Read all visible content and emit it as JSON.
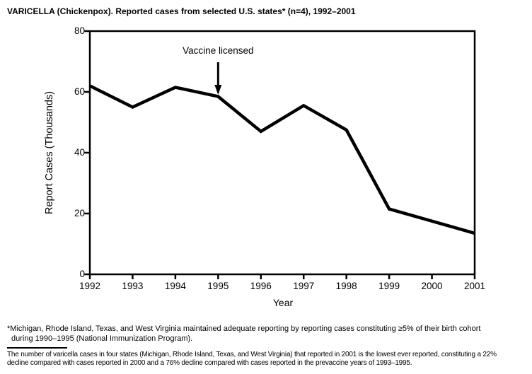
{
  "title": "VARICELLA (Chickenpox). Reported cases from selected U.S. states* (n=4), 1992–2001",
  "chart_data": {
    "type": "line",
    "title": "VARICELLA (Chickenpox). Reported cases from selected U.S. states* (n=4), 1992–2001",
    "x": [
      1992,
      1993,
      1994,
      1995,
      1996,
      1997,
      1998,
      1999,
      2000,
      2001
    ],
    "values": [
      62,
      55,
      61.5,
      58.5,
      47,
      55.5,
      47.5,
      21.5,
      17.5,
      13.5
    ],
    "series_name": "Reported varicella cases (thousands)",
    "xlabel": "Year",
    "ylabel": "Report Cases (Thousands)",
    "xlim": [
      1992,
      2001
    ],
    "ylim": [
      0,
      80
    ],
    "yticks": [
      0,
      20,
      40,
      60,
      80
    ],
    "xticks": [
      1992,
      1993,
      1994,
      1995,
      1996,
      1997,
      1998,
      1999,
      2000,
      2001
    ],
    "grid": false,
    "legend_position": "none",
    "line_color": "#000000",
    "frame_color": "#000000",
    "annotation": {
      "text": "Vaccine licensed",
      "x": 1995,
      "arrow": "down"
    }
  },
  "footnotes": {
    "footnote1_line1": "*Michigan, Rhode Island, Texas, and West Virginia maintained adequate reporting by reporting cases constituting ≥5% of their birth cohort",
    "footnote1_line2": "during 1990–1995 (National Immunization Program).",
    "footnote2_line1": "The number of varicella cases in four states (Michigan, Rhode Island, Texas, and West Virginia) that reported in 2001 is the lowest ever reported, constituting a 22%",
    "footnote2_line2": "decline compared with cases reported in 2000 and a 76% decline compared with cases reported in the prevaccine years of 1993–1995."
  }
}
